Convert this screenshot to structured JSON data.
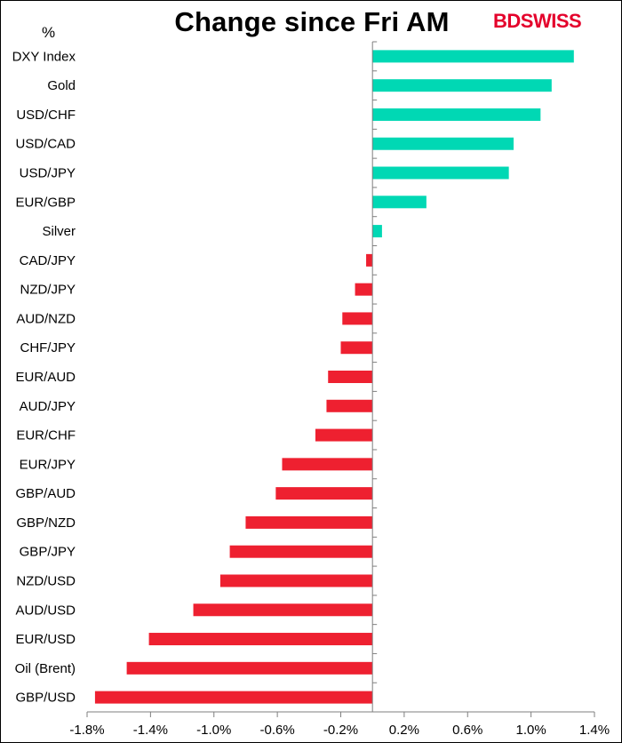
{
  "chart_data": {
    "type": "bar",
    "orientation": "horizontal",
    "title": "Change since Fri AM",
    "unit_label": "%",
    "xlabel": "",
    "ylabel": "",
    "xlim": [
      -1.8,
      1.4
    ],
    "x_ticks": [
      -1.8,
      -1.4,
      -1.0,
      -0.6,
      -0.2,
      0.2,
      0.6,
      1.0,
      1.4
    ],
    "x_tick_labels": [
      "-1.8%",
      "-1.4%",
      "-1.0%",
      "-0.6%",
      "-0.2%",
      "0.2%",
      "0.6%",
      "1.0%",
      "1.4%"
    ],
    "grid": false,
    "legend": "none",
    "positive_color": "#00d8b4",
    "negative_color": "#ee2030",
    "categories": [
      "DXY Index",
      "Gold",
      "USD/CHF",
      "USD/CAD",
      "USD/JPY",
      "EUR/GBP",
      "Silver",
      "CAD/JPY",
      "NZD/JPY",
      "AUD/NZD",
      "CHF/JPY",
      "EUR/AUD",
      "AUD/JPY",
      "EUR/CHF",
      "EUR/JPY",
      "GBP/AUD",
      "GBP/NZD",
      "GBP/JPY",
      "NZD/USD",
      "AUD/USD",
      "EUR/USD",
      "Oil (Brent)",
      "GBP/USD"
    ],
    "values": [
      1.27,
      1.13,
      1.06,
      0.89,
      0.86,
      0.34,
      0.06,
      -0.04,
      -0.11,
      -0.19,
      -0.2,
      -0.28,
      -0.29,
      -0.36,
      -0.57,
      -0.61,
      -0.8,
      -0.9,
      -0.96,
      -1.13,
      -1.41,
      -1.55,
      -1.75
    ]
  },
  "brand": {
    "name_part1": "BD",
    "name_part2": "SWISS",
    "color": "#e4002b"
  }
}
